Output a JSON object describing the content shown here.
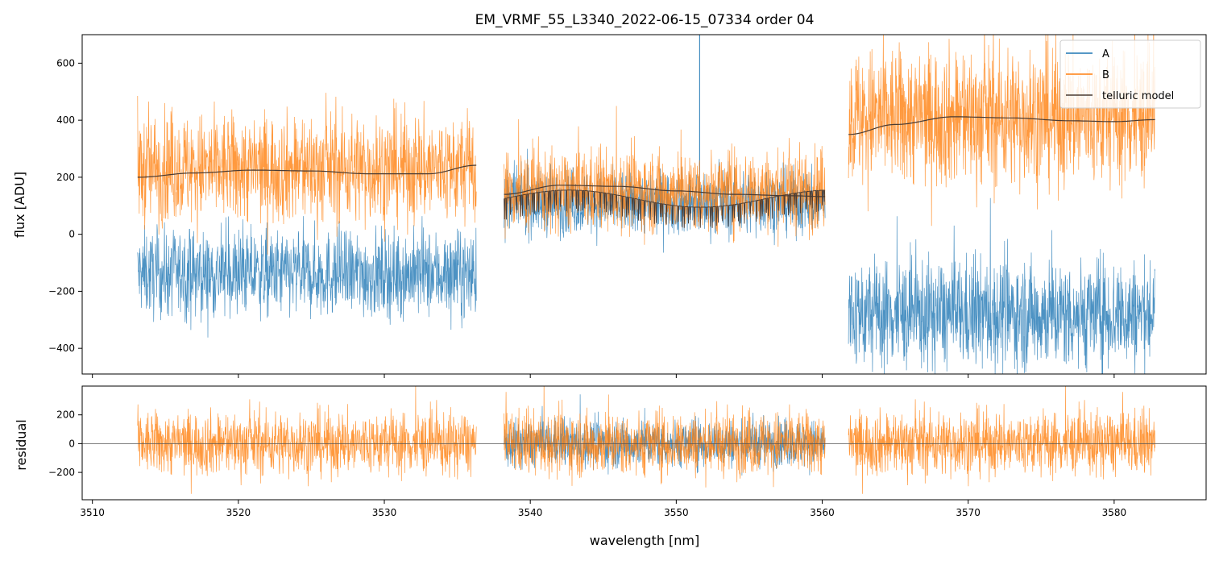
{
  "chart_data": [
    {
      "type": "line",
      "panel": "top",
      "title": "EM_VRMF_55_L3340_2022-06-15_07334  order 04",
      "xlabel": "",
      "ylabel": "flux [ADU]",
      "xlim": [
        3509.3,
        3586.3
      ],
      "ylim": [
        -490,
        700
      ],
      "yticks": [
        -400,
        -200,
        0,
        200,
        400,
        600
      ],
      "ytick_labels": [
        "−400",
        "−200",
        "0",
        "200",
        "400",
        "600"
      ],
      "xticks": [
        3510,
        3520,
        3530,
        3540,
        3550,
        3560,
        3570,
        3580
      ],
      "legend_position": "top-right",
      "segments": [
        {
          "x_start": 3513.1,
          "x_end": 3536.3
        },
        {
          "x_start": 3538.2,
          "x_end": 3560.2
        },
        {
          "x_start": 3561.8,
          "x_end": 3582.8
        }
      ],
      "series": [
        {
          "name": "A",
          "color": "#1f77b4",
          "segment_means": [
            -140,
            110,
            -280
          ],
          "segment_noise": [
            75,
            55,
            95
          ]
        },
        {
          "name": "B",
          "color": "#ff7f0e",
          "segment_means": [
            230,
            150,
            410
          ],
          "segment_noise": [
            95,
            70,
            120
          ]
        },
        {
          "name": "telluric model",
          "color": "#4a3b32",
          "continuum": [
            {
              "x": [
                3513.1,
                3517.0,
                3521.0,
                3525.0,
                3529.0,
                3533.0,
                3536.3
              ],
              "y": [
                200,
                215,
                225,
                222,
                212,
                212,
                242
              ]
            },
            {
              "x": [
                3538.2,
                3542.0,
                3546.0,
                3550.0,
                3554.0,
                3558.0,
                3560.2
              ],
              "y": [
                140,
                172,
                168,
                152,
                140,
                135,
                132
              ]
            },
            {
              "x": [
                3561.8,
                3565.0,
                3569.0,
                3573.0,
                3577.0,
                3580.0,
                3582.8
              ],
              "y": [
                350,
                385,
                412,
                408,
                398,
                395,
                402
              ]
            }
          ],
          "absorption_model": {
            "x_start": 3538.2,
            "x_end": 3560.2,
            "baseline": 125
          }
        }
      ]
    },
    {
      "type": "line",
      "panel": "bottom",
      "xlabel": "wavelength [nm]",
      "ylabel": "residual",
      "xlim": [
        3509.3,
        3586.3
      ],
      "ylim": [
        -390,
        400
      ],
      "yticks": [
        -200,
        0,
        200
      ],
      "ytick_labels": [
        "−200",
        "0",
        "200"
      ],
      "xticks": [
        3510,
        3520,
        3530,
        3540,
        3550,
        3560,
        3570,
        3580
      ],
      "xtick_labels": [
        "3510",
        "3520",
        "3530",
        "3540",
        "3550",
        "3560",
        "3570",
        "3580"
      ],
      "zero_line": 0,
      "series": [
        {
          "name": "A",
          "color": "#1f77b4",
          "segments_shown": [
            1
          ],
          "noise": 80
        },
        {
          "name": "B",
          "color": "#ff7f0e",
          "segments_shown": [
            0,
            1,
            2
          ],
          "noise": 110
        }
      ]
    }
  ]
}
